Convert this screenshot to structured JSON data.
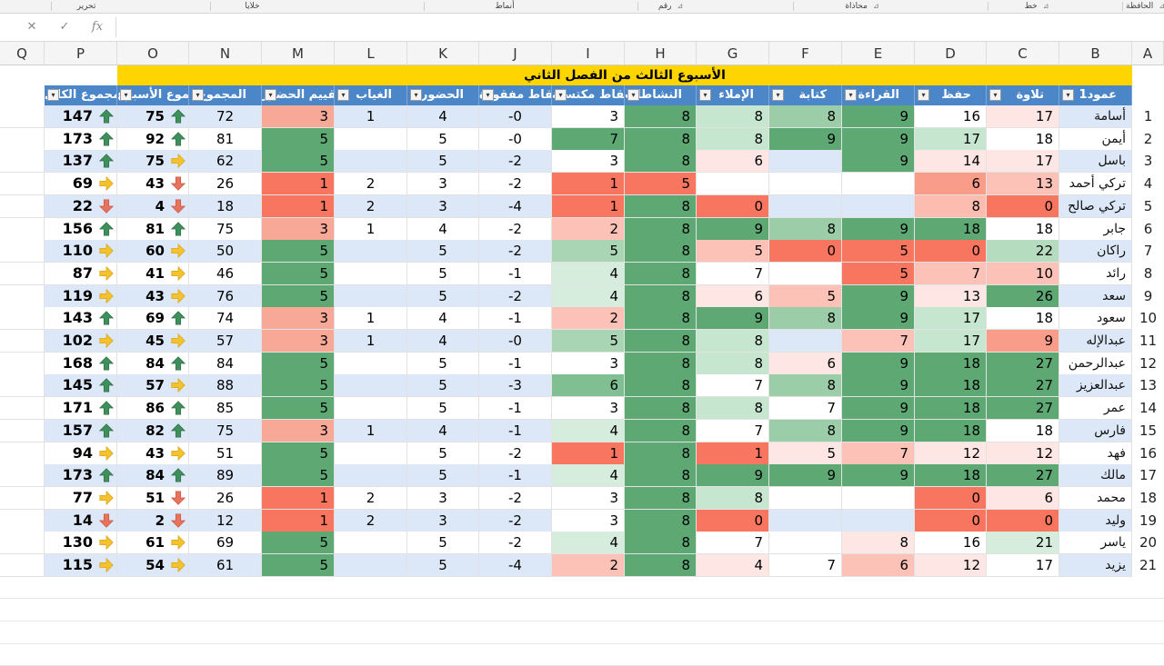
{
  "ribbon": {
    "groups": [
      {
        "label": "الحافظة",
        "launcher": "⊿"
      },
      {
        "label": "خط",
        "launcher": "⊿"
      },
      {
        "label": "محاذاة",
        "launcher": "⊿"
      },
      {
        "label": "رقم",
        "launcher": "⊿"
      },
      {
        "label": "أنماط",
        "launcher": ""
      },
      {
        "label": "خلايا",
        "launcher": ""
      },
      {
        "label": "تحرير",
        "launcher": ""
      }
    ]
  },
  "formula_bar": {
    "cancel": "✕",
    "enter": "✓",
    "fx": "fx",
    "value": ""
  },
  "columns": [
    "A",
    "B",
    "C",
    "D",
    "E",
    "F",
    "G",
    "H",
    "I",
    "J",
    "K",
    "L",
    "M",
    "N",
    "O",
    "P",
    "Q"
  ],
  "sheet_title": "الأسبوع الثالث من الفصل الثاني",
  "headers": {
    "B": "عمود1",
    "C": "تلاوة",
    "D": "حفظ",
    "E": "القراءة",
    "F": "كتابة",
    "G": "الإملاء",
    "H": "النشاطات",
    "I": "نقاط مكتسبة",
    "J": "نقاط مفقودة",
    "K": "الحضور",
    "L": "الغياب",
    "M": "تقييم الحضور",
    "N": "المجموع",
    "O": "مجموع الأسبوع",
    "P": "المجموع الكلي"
  },
  "rows": [
    {
      "n": "1",
      "name": "أسامة",
      "C": "17",
      "D": "16",
      "E": "9",
      "F": "8",
      "G": "8",
      "H": "8",
      "I": "3",
      "J": "-0",
      "K": "4",
      "L": "1",
      "M": "3",
      "N": "72",
      "O": "75",
      "P": "147"
    },
    {
      "n": "2",
      "name": "أيمن",
      "C": "18",
      "D": "17",
      "E": "9",
      "F": "9",
      "G": "8",
      "H": "8",
      "I": "7",
      "J": "-0",
      "K": "5",
      "L": "",
      "M": "5",
      "N": "81",
      "O": "92",
      "P": "173"
    },
    {
      "n": "3",
      "name": "باسل",
      "C": "17",
      "D": "14",
      "E": "9",
      "F": "",
      "G": "6",
      "H": "8",
      "I": "3",
      "J": "-2",
      "K": "5",
      "L": "",
      "M": "5",
      "N": "62",
      "O": "75",
      "P": "137"
    },
    {
      "n": "4",
      "name": "تركي أحمد",
      "C": "13",
      "D": "6",
      "E": "",
      "F": "",
      "G": "",
      "H": "5",
      "I": "1",
      "J": "-2",
      "K": "3",
      "L": "2",
      "M": "1",
      "N": "26",
      "O": "43",
      "P": "69"
    },
    {
      "n": "5",
      "name": "تركي صالح",
      "C": "0",
      "D": "8",
      "E": "",
      "F": "",
      "G": "0",
      "H": "8",
      "I": "1",
      "J": "-4",
      "K": "3",
      "L": "2",
      "M": "1",
      "N": "18",
      "O": "4",
      "P": "22"
    },
    {
      "n": "6",
      "name": "جابر",
      "C": "18",
      "D": "18",
      "E": "9",
      "F": "8",
      "G": "9",
      "H": "8",
      "I": "2",
      "J": "-2",
      "K": "4",
      "L": "1",
      "M": "3",
      "N": "75",
      "O": "81",
      "P": "156"
    },
    {
      "n": "7",
      "name": "راكان",
      "C": "22",
      "D": "0",
      "E": "5",
      "F": "0",
      "G": "5",
      "H": "8",
      "I": "5",
      "J": "-2",
      "K": "5",
      "L": "",
      "M": "5",
      "N": "50",
      "O": "60",
      "P": "110"
    },
    {
      "n": "8",
      "name": "رائد",
      "C": "10",
      "D": "7",
      "E": "5",
      "F": "",
      "G": "7",
      "H": "8",
      "I": "4",
      "J": "-1",
      "K": "5",
      "L": "",
      "M": "5",
      "N": "46",
      "O": "41",
      "P": "87"
    },
    {
      "n": "9",
      "name": "سعد",
      "C": "26",
      "D": "13",
      "E": "9",
      "F": "5",
      "G": "6",
      "H": "8",
      "I": "4",
      "J": "-2",
      "K": "5",
      "L": "",
      "M": "5",
      "N": "76",
      "O": "43",
      "P": "119"
    },
    {
      "n": "10",
      "name": "سعود",
      "C": "18",
      "D": "17",
      "E": "9",
      "F": "8",
      "G": "9",
      "H": "8",
      "I": "2",
      "J": "-1",
      "K": "4",
      "L": "1",
      "M": "3",
      "N": "74",
      "O": "69",
      "P": "143"
    },
    {
      "n": "11",
      "name": "عبدالإله",
      "C": "9",
      "D": "17",
      "E": "7",
      "F": "",
      "G": "8",
      "H": "8",
      "I": "5",
      "J": "-0",
      "K": "4",
      "L": "1",
      "M": "3",
      "N": "57",
      "O": "45",
      "P": "102"
    },
    {
      "n": "12",
      "name": "عبدالرحمن",
      "C": "27",
      "D": "18",
      "E": "9",
      "F": "6",
      "G": "8",
      "H": "8",
      "I": "3",
      "J": "-1",
      "K": "5",
      "L": "",
      "M": "5",
      "N": "84",
      "O": "84",
      "P": "168"
    },
    {
      "n": "13",
      "name": "عبدالعزيز",
      "C": "27",
      "D": "18",
      "E": "9",
      "F": "8",
      "G": "7",
      "H": "8",
      "I": "6",
      "J": "-3",
      "K": "5",
      "L": "",
      "M": "5",
      "N": "88",
      "O": "57",
      "P": "145"
    },
    {
      "n": "14",
      "name": "عمر",
      "C": "27",
      "D": "18",
      "E": "9",
      "F": "7",
      "G": "8",
      "H": "8",
      "I": "3",
      "J": "-1",
      "K": "5",
      "L": "",
      "M": "5",
      "N": "85",
      "O": "86",
      "P": "171"
    },
    {
      "n": "15",
      "name": "فارس",
      "C": "18",
      "D": "18",
      "E": "9",
      "F": "8",
      "G": "7",
      "H": "8",
      "I": "4",
      "J": "-1",
      "K": "4",
      "L": "1",
      "M": "3",
      "N": "75",
      "O": "82",
      "P": "157"
    },
    {
      "n": "16",
      "name": "فهد",
      "C": "12",
      "D": "12",
      "E": "7",
      "F": "5",
      "G": "1",
      "H": "8",
      "I": "1",
      "J": "-2",
      "K": "5",
      "L": "",
      "M": "5",
      "N": "51",
      "O": "43",
      "P": "94"
    },
    {
      "n": "17",
      "name": "مالك",
      "C": "27",
      "D": "18",
      "E": "9",
      "F": "9",
      "G": "9",
      "H": "8",
      "I": "4",
      "J": "-1",
      "K": "5",
      "L": "",
      "M": "5",
      "N": "89",
      "O": "84",
      "P": "173"
    },
    {
      "n": "18",
      "name": "محمد",
      "C": "6",
      "D": "0",
      "E": "",
      "F": "",
      "G": "8",
      "H": "8",
      "I": "3",
      "J": "-2",
      "K": "3",
      "L": "2",
      "M": "1",
      "N": "26",
      "O": "51",
      "P": "77"
    },
    {
      "n": "19",
      "name": "وليد",
      "C": "0",
      "D": "0",
      "E": "",
      "F": "",
      "G": "0",
      "H": "8",
      "I": "3",
      "J": "-2",
      "K": "3",
      "L": "2",
      "M": "1",
      "N": "12",
      "O": "2",
      "P": "14"
    },
    {
      "n": "20",
      "name": "ياسر",
      "C": "21",
      "D": "16",
      "E": "8",
      "F": "",
      "G": "7",
      "H": "8",
      "I": "4",
      "J": "-2",
      "K": "5",
      "L": "",
      "M": "5",
      "N": "69",
      "O": "61",
      "P": "130"
    },
    {
      "n": "21",
      "name": "يزيد",
      "C": "17",
      "D": "12",
      "E": "6",
      "F": "7",
      "G": "4",
      "H": "8",
      "I": "2",
      "J": "-4",
      "K": "5",
      "L": "",
      "M": "5",
      "N": "61",
      "O": "54",
      "P": "115"
    }
  ],
  "cell_fills": [
    {
      "C": "#fde6e4",
      "D": "#ffffff",
      "E": "#5ea874",
      "F": "#9ccda9",
      "G": "#c7e6cf",
      "H": "#5ea874",
      "I": "#ffffff",
      "M": "#f8a896"
    },
    {
      "C": "#ffffff",
      "D": "#c7e6cf",
      "E": "#5ea874",
      "F": "#5ea874",
      "G": "#c7e6cf",
      "H": "#5ea874",
      "I": "#5ea874",
      "M": "#5ea874"
    },
    {
      "C": "#fde6e4",
      "D": "#fde6e4",
      "E": "#5ea874",
      "F": "",
      "G": "#fde6e4",
      "H": "#5ea874",
      "I": "#ffffff",
      "M": "#5ea874"
    },
    {
      "C": "#fcc2b7",
      "D": "#fa9c8a",
      "E": "",
      "F": "",
      "G": "",
      "H": "#f8765f",
      "I": "#f8765f",
      "M": "#f8765f"
    },
    {
      "C": "#f8765f",
      "D": "#fcbcb0",
      "E": "",
      "F": "",
      "G": "#f8765f",
      "H": "#5ea874",
      "I": "#f8765f",
      "M": "#f8765f"
    },
    {
      "C": "#ffffff",
      "D": "#5ea874",
      "E": "#5ea874",
      "F": "#9ccda9",
      "G": "#5ea874",
      "H": "#5ea874",
      "I": "#fcc2b7",
      "M": "#f8a896"
    },
    {
      "C": "#b5dcbf",
      "D": "#f8765f",
      "E": "#f8765f",
      "F": "#f8765f",
      "G": "#fcc2b7",
      "H": "#5ea874",
      "I": "#a9d5b4",
      "M": "#5ea874"
    },
    {
      "C": "#fcc2b7",
      "D": "#fcc2b7",
      "E": "#f8765f",
      "F": "",
      "G": "#ffffff",
      "H": "#5ea874",
      "I": "#d6edde",
      "M": "#5ea874"
    },
    {
      "C": "#5ea874",
      "D": "#fde6e4",
      "E": "#5ea874",
      "F": "#fcc2b7",
      "G": "#fde6e4",
      "H": "#5ea874",
      "I": "#d6edde",
      "M": "#5ea874"
    },
    {
      "C": "#ffffff",
      "D": "#c7e6cf",
      "E": "#5ea874",
      "F": "#9ccda9",
      "G": "#5ea874",
      "H": "#5ea874",
      "I": "#fcc2b7",
      "M": "#f8a896"
    },
    {
      "C": "#fa9c8a",
      "D": "#c7e6cf",
      "E": "#fcc2b7",
      "F": "",
      "G": "#c7e6cf",
      "H": "#5ea874",
      "I": "#a9d5b4",
      "M": "#f8a896"
    },
    {
      "C": "#5ea874",
      "D": "#5ea874",
      "E": "#5ea874",
      "F": "#fde6e4",
      "G": "#c7e6cf",
      "H": "#5ea874",
      "I": "#ffffff",
      "M": "#5ea874"
    },
    {
      "C": "#5ea874",
      "D": "#5ea874",
      "E": "#5ea874",
      "F": "#9ccda9",
      "G": "#ffffff",
      "H": "#5ea874",
      "I": "#7fbf92",
      "M": "#5ea874"
    },
    {
      "C": "#5ea874",
      "D": "#5ea874",
      "E": "#5ea874",
      "F": "#ffffff",
      "G": "#c7e6cf",
      "H": "#5ea874",
      "I": "#ffffff",
      "M": "#5ea874"
    },
    {
      "C": "#ffffff",
      "D": "#5ea874",
      "E": "#5ea874",
      "F": "#9ccda9",
      "G": "#ffffff",
      "H": "#5ea874",
      "I": "#d6edde",
      "M": "#f8a896"
    },
    {
      "C": "#fde6e4",
      "D": "#fde6e4",
      "E": "#fcc2b7",
      "F": "#fde6e4",
      "G": "#f8765f",
      "H": "#5ea874",
      "I": "#f8765f",
      "M": "#5ea874"
    },
    {
      "C": "#5ea874",
      "D": "#5ea874",
      "E": "#5ea874",
      "F": "#5ea874",
      "G": "#5ea874",
      "H": "#5ea874",
      "I": "#d6edde",
      "M": "#5ea874"
    },
    {
      "C": "#fde6e4",
      "D": "#f8765f",
      "E": "",
      "F": "",
      "G": "#c7e6cf",
      "H": "#5ea874",
      "I": "#ffffff",
      "M": "#f8765f"
    },
    {
      "C": "#f8765f",
      "D": "#f8765f",
      "E": "",
      "F": "",
      "G": "#f8765f",
      "H": "#5ea874",
      "I": "#ffffff",
      "M": "#f8765f"
    },
    {
      "C": "#d6edde",
      "D": "#ffffff",
      "E": "#fde6e4",
      "F": "",
      "G": "#ffffff",
      "H": "#5ea874",
      "I": "#d6edde",
      "M": "#5ea874"
    },
    {
      "C": "#ffffff",
      "D": "#fde6e4",
      "E": "#fcc2b7",
      "F": "#ffffff",
      "G": "#fde6e4",
      "H": "#5ea874",
      "I": "#fcc2b7",
      "M": "#5ea874"
    }
  ],
  "icons": {
    "O": [
      "up",
      "up",
      "right",
      "down",
      "down",
      "up",
      "right",
      "right",
      "right",
      "up",
      "right",
      "up",
      "right",
      "up",
      "up",
      "right",
      "up",
      "down",
      "down",
      "right",
      "right"
    ],
    "P": [
      "up",
      "up",
      "up",
      "right",
      "down",
      "up",
      "right",
      "right",
      "right",
      "up",
      "right",
      "up",
      "up",
      "up",
      "up",
      "right",
      "up",
      "right",
      "down",
      "right",
      "right"
    ]
  },
  "colors": {
    "band_light": "#dce8f7",
    "band_white": "#ffffff",
    "header_blue": "#4a86c8",
    "title_yellow": "#ffd500",
    "icon_up": "#3f8f5c",
    "icon_down": "#e8735d",
    "icon_right": "#f5c22f"
  }
}
